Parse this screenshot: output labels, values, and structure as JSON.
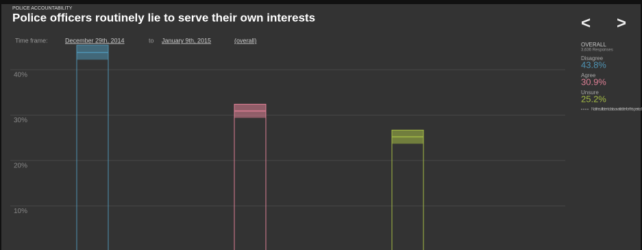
{
  "header": {
    "category": "POLICE ACCOUNTABILITY",
    "title": "Police officers routinely lie to serve their own interests"
  },
  "time_frame": {
    "label": "Time frame:",
    "start": "December 29th, 2014",
    "joiner": "to",
    "end": "January 9th, 2015",
    "scope": "(overall)"
  },
  "nav": {
    "prev": "<",
    "next": ">"
  },
  "summary": {
    "heading": "OVERALL",
    "responses": "3,636 Responses",
    "note": "Not/insufficient data available for this period"
  },
  "chart_data": {
    "type": "bar",
    "categories": [
      "Disagree",
      "Agree",
      "Unsure"
    ],
    "values": [
      43.8,
      30.9,
      25.2
    ],
    "value_labels": [
      "43.8%",
      "30.9%",
      "25.2%"
    ],
    "errors": [
      1.6,
      1.5,
      1.5
    ],
    "colors": [
      "#4f93b3",
      "#dc7f94",
      "#a4bb45"
    ],
    "ylim": [
      0,
      55
    ],
    "yticks": [
      {
        "value": 10,
        "label": "10%"
      },
      {
        "value": 20,
        "label": "20%"
      },
      {
        "value": 30,
        "label": "30%"
      },
      {
        "value": 40,
        "label": "40%"
      }
    ],
    "grid": true
  }
}
